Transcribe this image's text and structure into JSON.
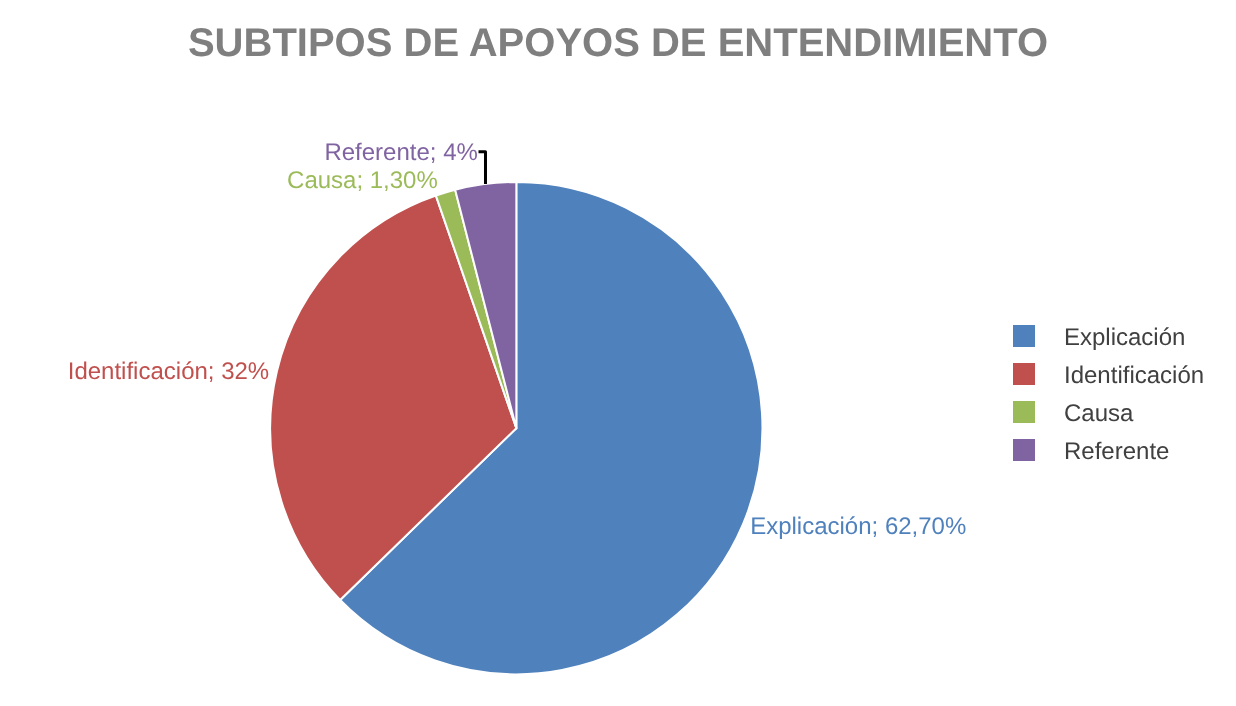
{
  "chart_data": {
    "type": "pie",
    "title": "SUBTIPOS DE APOYOS DE ENTENDIMIENTO",
    "categories": [
      "Explicación",
      "Identificación",
      "Causa",
      "Referente"
    ],
    "values": [
      62.7,
      32,
      1.3,
      4
    ],
    "colors": [
      "#4f81bd",
      "#c0504d",
      "#9bbb59",
      "#8064a2"
    ],
    "value_labels": [
      "Explicación; 62,70%",
      "Identificación; 32%",
      "Causa; 1,30%",
      "Referente; 4%"
    ],
    "legend": "right"
  }
}
